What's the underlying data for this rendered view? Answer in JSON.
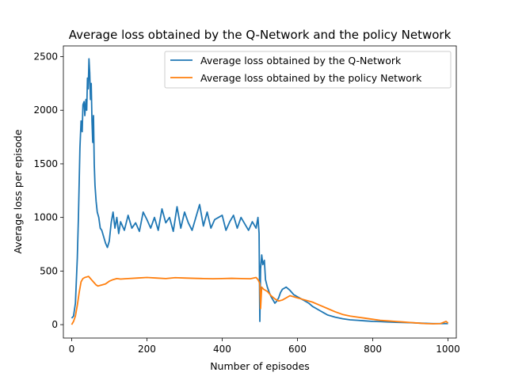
{
  "chart_data": {
    "type": "line",
    "title": "Average loss obtained by the Q-Network and the policy Network",
    "xlabel": "Number of episodes",
    "ylabel": "Average loss per episode",
    "xlim": [
      -22,
      1022
    ],
    "ylim": [
      -125,
      2600
    ],
    "xticks": [
      0,
      200,
      400,
      600,
      800,
      1000
    ],
    "yticks": [
      0,
      500,
      1000,
      1500,
      2000,
      2500
    ],
    "grid": false,
    "legend_position": "top-right",
    "series": [
      {
        "name": "Average loss obtained by the Q-Network",
        "color": "#1f77b4",
        "x": [
          0,
          5,
          10,
          15,
          18,
          22,
          25,
          28,
          30,
          33,
          35,
          38,
          40,
          42,
          44,
          46,
          48,
          50,
          52,
          54,
          56,
          58,
          60,
          62,
          65,
          68,
          72,
          76,
          80,
          85,
          90,
          95,
          100,
          105,
          110,
          115,
          120,
          125,
          130,
          140,
          150,
          160,
          170,
          180,
          190,
          200,
          210,
          220,
          230,
          240,
          250,
          260,
          270,
          280,
          290,
          300,
          310,
          320,
          330,
          340,
          350,
          360,
          370,
          380,
          390,
          400,
          410,
          420,
          430,
          440,
          450,
          460,
          470,
          480,
          490,
          495,
          498,
          500,
          502,
          505,
          508,
          512,
          515,
          520,
          525,
          530,
          535,
          540,
          545,
          550,
          555,
          560,
          570,
          580,
          590,
          600,
          610,
          620,
          630,
          640,
          650,
          660,
          670,
          680,
          690,
          700,
          720,
          740,
          760,
          780,
          800,
          820,
          840,
          860,
          880,
          900,
          920,
          940,
          960,
          980,
          1000
        ],
        "y": [
          60,
          80,
          200,
          620,
          1000,
          1650,
          1900,
          1800,
          2050,
          2080,
          1950,
          2100,
          2000,
          2300,
          2200,
          2480,
          2350,
          2100,
          2250,
          1900,
          1700,
          1950,
          1500,
          1300,
          1150,
          1050,
          1000,
          900,
          880,
          820,
          760,
          720,
          780,
          950,
          1050,
          900,
          1000,
          850,
          960,
          880,
          1020,
          900,
          950,
          870,
          1050,
          980,
          900,
          1000,
          880,
          1080,
          950,
          1000,
          870,
          1100,
          900,
          1050,
          950,
          880,
          1000,
          1120,
          920,
          1050,
          900,
          980,
          1000,
          1020,
          880,
          960,
          1020,
          900,
          1000,
          940,
          880,
          960,
          900,
          1000,
          850,
          30,
          520,
          650,
          560,
          600,
          420,
          350,
          300,
          260,
          230,
          200,
          220,
          250,
          300,
          330,
          350,
          320,
          280,
          260,
          240,
          220,
          200,
          170,
          150,
          130,
          110,
          90,
          80,
          70,
          55,
          45,
          40,
          35,
          30,
          28,
          25,
          22,
          20,
          18,
          15,
          12,
          10,
          10,
          10
        ]
      },
      {
        "name": "Average loss obtained by the policy Network",
        "color": "#ff7f0e",
        "x": [
          0,
          5,
          10,
          15,
          20,
          25,
          30,
          35,
          40,
          45,
          50,
          55,
          60,
          65,
          70,
          75,
          80,
          90,
          100,
          110,
          120,
          130,
          150,
          175,
          200,
          225,
          250,
          275,
          300,
          325,
          350,
          375,
          400,
          425,
          450,
          475,
          490,
          495,
          498,
          500,
          502,
          505,
          510,
          515,
          520,
          530,
          540,
          550,
          560,
          570,
          580,
          590,
          600,
          620,
          640,
          660,
          680,
          700,
          720,
          740,
          760,
          780,
          800,
          820,
          840,
          860,
          880,
          900,
          920,
          940,
          960,
          980,
          995,
          1000
        ],
        "y": [
          0,
          30,
          80,
          180,
          300,
          400,
          430,
          440,
          445,
          450,
          430,
          410,
          390,
          370,
          360,
          365,
          370,
          380,
          405,
          420,
          430,
          425,
          430,
          435,
          440,
          435,
          430,
          438,
          435,
          432,
          430,
          428,
          430,
          432,
          430,
          428,
          440,
          420,
          400,
          380,
          150,
          350,
          330,
          320,
          310,
          270,
          240,
          220,
          230,
          250,
          270,
          260,
          250,
          230,
          210,
          180,
          150,
          120,
          95,
          80,
          70,
          60,
          50,
          40,
          35,
          30,
          25,
          20,
          15,
          10,
          8,
          10,
          30,
          15
        ]
      }
    ]
  }
}
